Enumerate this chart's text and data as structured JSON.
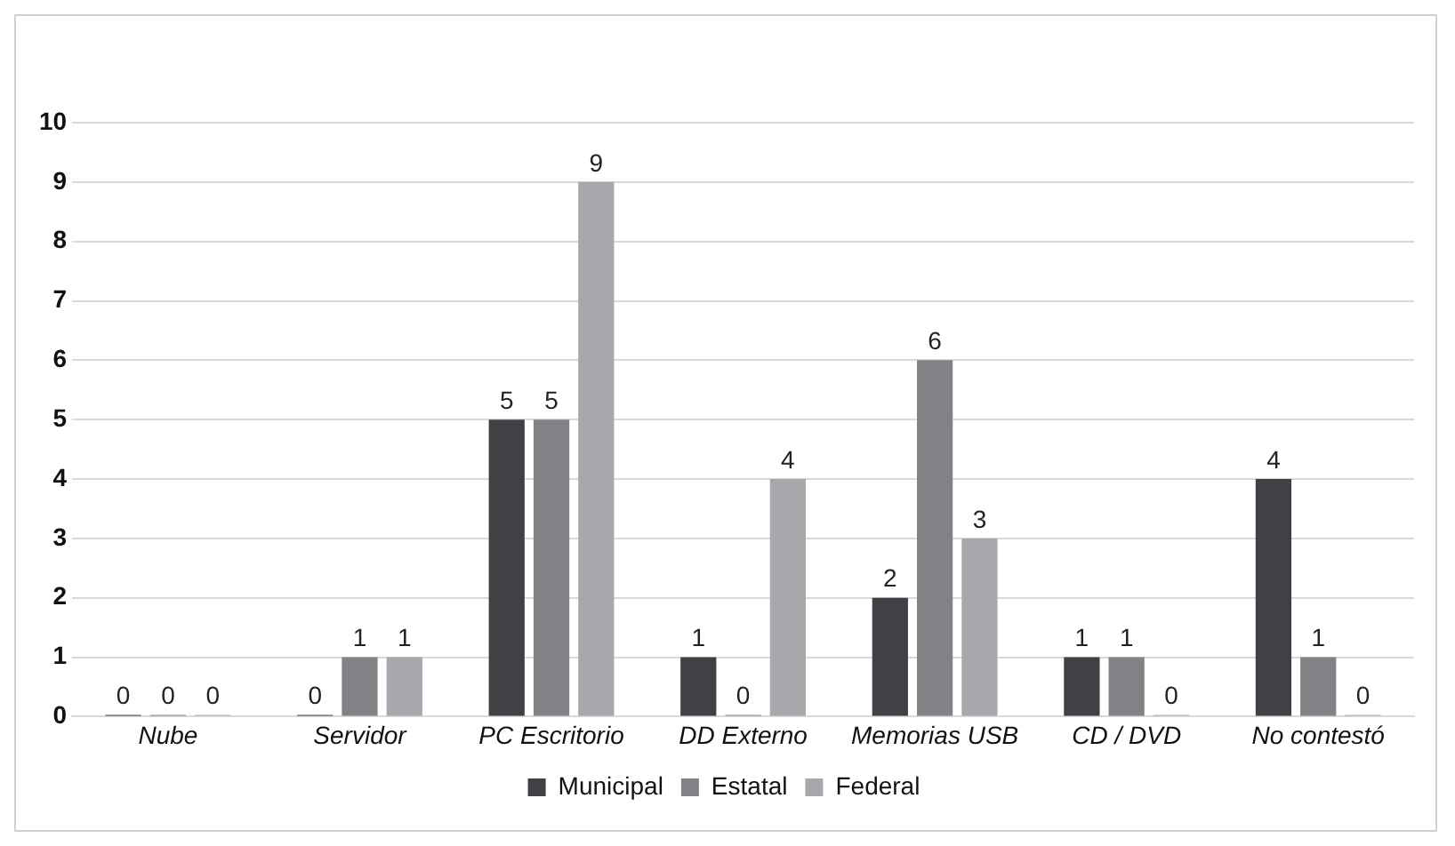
{
  "chart_data": {
    "type": "bar",
    "categories": [
      "Nube",
      "Servidor",
      "PC Escritorio",
      "DD Externo",
      "Memorias USB",
      "CD / DVD",
      "No contestó"
    ],
    "series": [
      {
        "name": "Municipal",
        "color": "#3f4145",
        "values": [
          0,
          0,
          5,
          1,
          2,
          1,
          4
        ]
      },
      {
        "name": "Estatal",
        "color": "#808285",
        "values": [
          0,
          1,
          5,
          0,
          6,
          1,
          1
        ]
      },
      {
        "name": "Federal",
        "color": "#a6a8ab",
        "values": [
          0,
          1,
          9,
          4,
          3,
          0,
          0
        ]
      }
    ],
    "ylim": [
      0,
      10
    ],
    "yticks": [
      0,
      1,
      2,
      3,
      4,
      5,
      6,
      7,
      8,
      9,
      10
    ],
    "grid": "y",
    "legend": "bottom",
    "data_labels": true
  }
}
